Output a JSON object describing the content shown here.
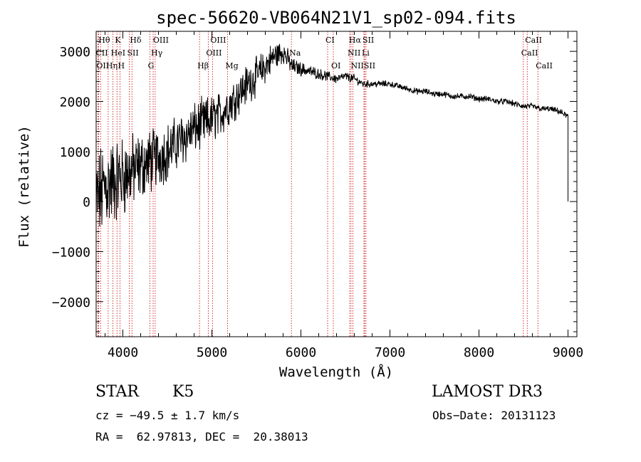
{
  "chart_data": {
    "type": "line",
    "title": "spec-56620-VB064N21V1_sp02-094.fits",
    "xlabel": "Wavelength (Å)",
    "ylabel": "Flux (relative)",
    "xlim": [
      3700,
      9100
    ],
    "ylim": [
      -2700,
      3400
    ],
    "xticks": [
      4000,
      5000,
      6000,
      7000,
      8000,
      9000
    ],
    "yticks": [
      -2000,
      -1000,
      0,
      1000,
      2000,
      3000
    ],
    "grid": false,
    "series": [
      {
        "name": "flux",
        "x": [
          3700,
          3800,
          3900,
          4000,
          4100,
          4200,
          4300,
          4400,
          4500,
          4600,
          4700,
          4800,
          4900,
          5000,
          5100,
          5200,
          5300,
          5400,
          5500,
          5600,
          5700,
          5800,
          5900,
          6000,
          6100,
          6200,
          6300,
          6400,
          6500,
          6600,
          6700,
          6800,
          6900,
          7000,
          7100,
          7200,
          7300,
          7400,
          7500,
          7600,
          7700,
          7800,
          7900,
          8000,
          8100,
          8200,
          8300,
          8400,
          8500,
          8600,
          8700,
          8800,
          8900,
          9000
        ],
        "y": [
          0,
          300,
          400,
          500,
          600,
          700,
          800,
          900,
          1000,
          1150,
          1300,
          1450,
          1550,
          1650,
          1750,
          1950,
          2150,
          2350,
          2500,
          2700,
          2900,
          3000,
          2700,
          2650,
          2600,
          2550,
          2500,
          2450,
          2500,
          2450,
          2350,
          2350,
          2350,
          2350,
          2300,
          2250,
          2200,
          2200,
          2150,
          2150,
          2100,
          2100,
          2100,
          2050,
          2050,
          2000,
          2000,
          1950,
          1900,
          1900,
          1850,
          1850,
          1800,
          1700
        ],
        "noise": [
          1400,
          1400,
          1300,
          1200,
          1100,
          1000,
          950,
          900,
          850,
          800,
          800,
          750,
          750,
          700,
          650,
          650,
          600,
          600,
          550,
          500,
          450,
          350,
          250,
          200,
          180,
          160,
          150,
          140,
          130,
          120,
          110,
          100,
          100,
          90,
          90,
          90,
          90,
          90,
          90,
          90,
          90,
          90,
          90,
          90,
          90,
          90,
          90,
          90,
          90,
          90,
          90,
          90,
          90,
          100
        ]
      }
    ],
    "lines": [
      {
        "label": "Hθ",
        "wave": 3750,
        "row": 0
      },
      {
        "label": "CII",
        "wave": 3720,
        "row": 1
      },
      {
        "label": "OII",
        "wave": 3727,
        "row": 2
      },
      {
        "label": "Hη",
        "wave": 3835,
        "row": 2
      },
      {
        "label": "K",
        "wave": 3934,
        "row": 0
      },
      {
        "label": "HeI",
        "wave": 3889,
        "row": 1
      },
      {
        "label": "H",
        "wave": 3968,
        "row": 2
      },
      {
        "label": "SII",
        "wave": 4072,
        "row": 1
      },
      {
        "label": "Hδ",
        "wave": 4102,
        "row": 0
      },
      {
        "label": "OIII",
        "wave": 4363,
        "row": 0
      },
      {
        "label": "Hγ",
        "wave": 4340,
        "row": 1
      },
      {
        "label": "G",
        "wave": 4305,
        "row": 2
      },
      {
        "label": "Hβ",
        "wave": 4861,
        "row": 2
      },
      {
        "label": "OIII",
        "wave": 4959,
        "row": 1
      },
      {
        "label": "OIII",
        "wave": 5007,
        "row": 0
      },
      {
        "label": "Mg",
        "wave": 5175,
        "row": 2
      },
      {
        "label": "Na",
        "wave": 5893,
        "row": 1
      },
      {
        "label": "CI",
        "wave": 6300,
        "row": 0
      },
      {
        "label": "OI",
        "wave": 6364,
        "row": 2
      },
      {
        "label": "Hα",
        "wave": 6563,
        "row": 0
      },
      {
        "label": "NII",
        "wave": 6548,
        "row": 1
      },
      {
        "label": "NII",
        "wave": 6584,
        "row": 2
      },
      {
        "label": "SII",
        "wave": 6716,
        "row": 0
      },
      {
        "label": "Li",
        "wave": 6708,
        "row": 1
      },
      {
        "label": "SII",
        "wave": 6731,
        "row": 2
      },
      {
        "label": "CaII",
        "wave": 8542,
        "row": 0
      },
      {
        "label": "CaII",
        "wave": 8498,
        "row": 1
      },
      {
        "label": "CaII",
        "wave": 8662,
        "row": 2
      }
    ]
  },
  "info": {
    "class": "STAR",
    "subclass": "K5",
    "survey": "LAMOST DR3",
    "cz": "cz = −49.5 ± 1.7 km/s",
    "obsdate": "Obs−Date: 20131123",
    "coords": "RA =  62.97813, DEC =  20.38013"
  },
  "colors": {
    "line_marker": "#cc0000",
    "spectrum": "#000000",
    "axes": "#000000"
  }
}
